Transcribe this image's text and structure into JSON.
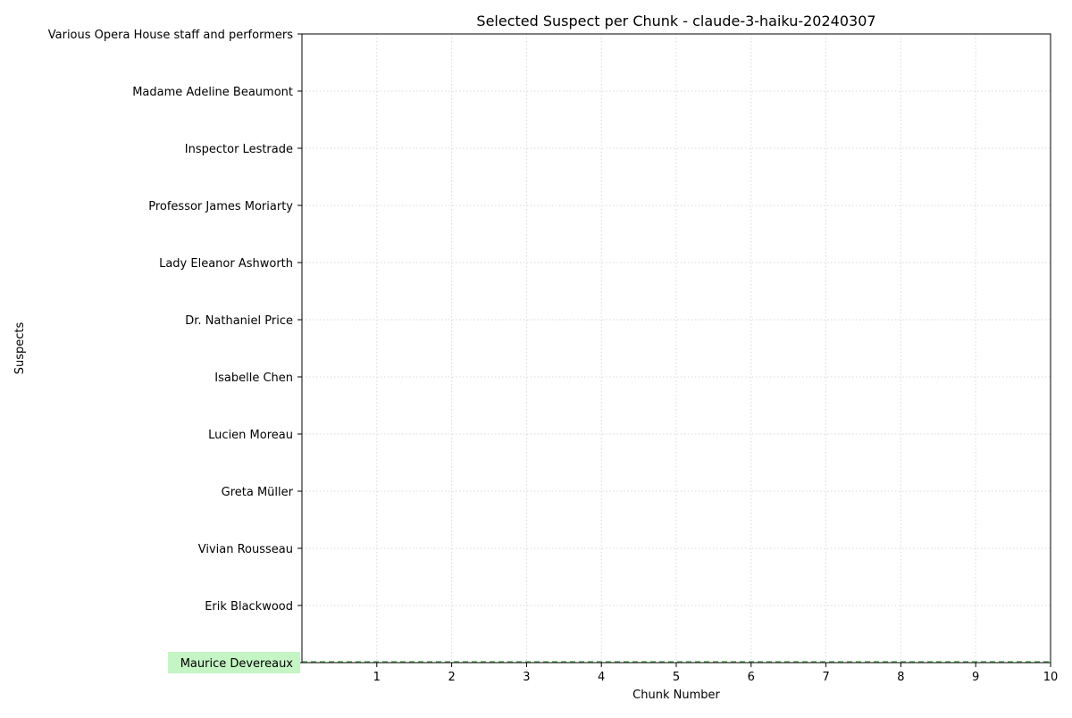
{
  "chart_data": {
    "type": "line",
    "title": "Selected Suspect per Chunk - claude-3-haiku-20240307",
    "xlabel": "Chunk Number",
    "ylabel": "Suspects",
    "x_ticks": [
      1,
      2,
      3,
      4,
      5,
      6,
      7,
      8,
      9,
      10
    ],
    "xlim": [
      0,
      10
    ],
    "categories": [
      "Maurice Devereaux",
      "Erik Blackwood",
      "Vivian Rousseau",
      "Greta Müller",
      "Lucien Moreau",
      "Isabelle Chen",
      "Dr. Nathaniel Price",
      "Lady Eleanor Ashworth",
      "Professor James Moriarty",
      "Inspector Lestrade",
      "Madame Adeline Beaumont",
      "Various Opera House staff and performers"
    ],
    "highlighted_category": "Maurice Devereaux",
    "highlight_color": "#c5f5c5",
    "reference_line": {
      "category": "Maurice Devereaux",
      "color": "#5fa85f",
      "style": "dashed"
    },
    "grid": true,
    "grid_style": "dotted",
    "series": []
  }
}
